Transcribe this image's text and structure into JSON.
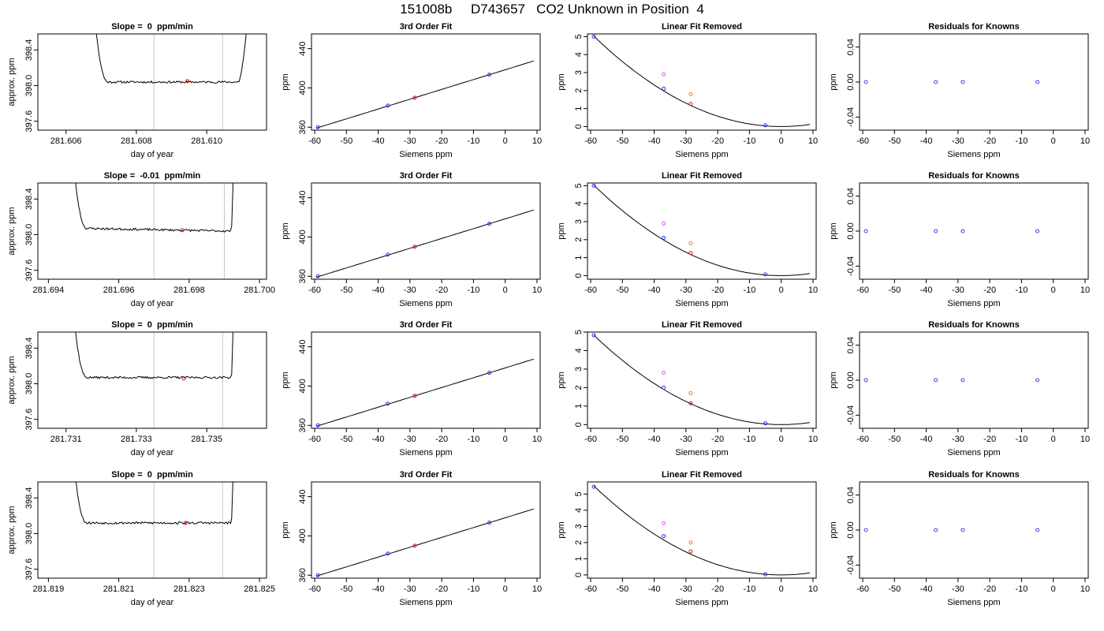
{
  "page_title": "151008b     D743657   CO2 Unknown in Position  4",
  "colors": {
    "line": "#000000",
    "vline": "#c8c8c8",
    "point_blue": "#2233ee",
    "point_red": "#dd1111",
    "point_orange": "#ee7733",
    "point_magenta": "#dd55ee",
    "point_purple": "#7722ee"
  },
  "chart_data": [
    {
      "type": "line",
      "row": 0,
      "col": 0,
      "title": "Slope =  0  ppm/min",
      "xlabel": "day of year",
      "ylabel": "approx. ppm",
      "xlim": [
        281.6052,
        281.6117
      ],
      "ylim": [
        397.5,
        398.58
      ],
      "xticks": [
        281.606,
        281.608,
        281.61
      ],
      "xtick_labels": [
        "281.606",
        "281.608",
        "281.610"
      ],
      "yticks": [
        397.6,
        398.0,
        398.4
      ],
      "ytick_labels": [
        "397.6",
        "398.0",
        "398.4"
      ],
      "trace": {
        "x_start": 281.6066,
        "x_end": 281.6114,
        "start_value": 400.0,
        "end_value": 400.0,
        "plateau_start": 281.6072,
        "plateau_end": 281.6109,
        "plateau_level": 398.04,
        "noise": 0.012,
        "seed": 11
      },
      "vlines": [
        281.6085,
        281.61045
      ],
      "marker": {
        "x": 281.60945,
        "y": 398.05
      }
    },
    {
      "type": "scatter",
      "row": 0,
      "col": 1,
      "title": "3rd Order Fit",
      "xlabel": "Siemens ppm",
      "ylabel": "ppm",
      "xlim": [
        -61,
        11
      ],
      "ylim": [
        357,
        455
      ],
      "xticks": [
        -60,
        -50,
        -40,
        -30,
        -20,
        -10,
        0,
        10
      ],
      "xtick_labels": [
        "-60",
        "-50",
        "-40",
        "-30",
        "-20",
        "-10",
        "0",
        "10"
      ],
      "yticks": [
        360,
        400,
        440
      ],
      "ytick_labels": [
        "360",
        "400",
        "440"
      ],
      "curve": {
        "type": "linear",
        "x0": -59.5,
        "x1": 9,
        "slope": 1,
        "intercept": 418.5
      },
      "points": [
        {
          "x": -59,
          "y": 360,
          "color": "point_blue"
        },
        {
          "x": -37,
          "y": 382,
          "color": "point_blue"
        },
        {
          "x": -28.5,
          "y": 390,
          "color": "point_red"
        },
        {
          "x": -5,
          "y": 413.5,
          "color": "point_blue"
        }
      ]
    },
    {
      "type": "scatter",
      "row": 0,
      "col": 2,
      "title": "Linear Fit Removed",
      "xlabel": "Siemens ppm",
      "ylabel": "ppm",
      "xlim": [
        -61,
        11
      ],
      "ylim": [
        -0.2,
        5.15
      ],
      "xticks": [
        -60,
        -50,
        -40,
        -30,
        -20,
        -10,
        0,
        10
      ],
      "xtick_labels": [
        "-60",
        "-50",
        "-40",
        "-30",
        "-20",
        "-10",
        "0",
        "10"
      ],
      "yticks": [
        0,
        1,
        2,
        3,
        4,
        5
      ],
      "ytick_labels": [
        "0",
        "1",
        "2",
        "3",
        "4",
        "5"
      ],
      "curve": {
        "type": "quadratic",
        "x0": -59,
        "x1": 9,
        "a": 0.001445,
        "vertex": 0
      },
      "points": [
        {
          "x": -59,
          "y": 5.0,
          "color": "point_blue"
        },
        {
          "x": -37,
          "y": 2.1,
          "color": "point_blue"
        },
        {
          "x": -37,
          "y": 2.9,
          "color": "point_magenta"
        },
        {
          "x": -28.5,
          "y": 1.25,
          "color": "point_red"
        },
        {
          "x": -28.5,
          "y": 1.8,
          "color": "point_orange"
        },
        {
          "x": -5,
          "y": 0.07,
          "color": "point_blue"
        }
      ]
    },
    {
      "type": "scatter",
      "row": 0,
      "col": 3,
      "title": "Residuals for Knowns",
      "xlabel": "Siemens ppm",
      "ylabel": "ppm",
      "xlim": [
        -61,
        11
      ],
      "ylim": [
        -0.055,
        0.055
      ],
      "xticks": [
        -60,
        -50,
        -40,
        -30,
        -20,
        -10,
        0,
        10
      ],
      "xtick_labels": [
        "-60",
        "-50",
        "-40",
        "-30",
        "-20",
        "-10",
        "0",
        "10"
      ],
      "yticks": [
        -0.04,
        0.0,
        0.04
      ],
      "ytick_labels": [
        "-0.04",
        "0.00",
        "0.04"
      ],
      "points": [
        {
          "x": -59,
          "y": 0,
          "color": "point_purple"
        },
        {
          "x": -37,
          "y": 0,
          "color": "point_purple"
        },
        {
          "x": -28.5,
          "y": 0,
          "color": "point_purple"
        },
        {
          "x": -5,
          "y": 0,
          "color": "point_purple"
        }
      ]
    },
    {
      "type": "line",
      "row": 1,
      "col": 0,
      "title": "Slope =  -0.01  ppm/min",
      "xlabel": "day of year",
      "ylabel": "approx. ppm",
      "xlim": [
        281.6937,
        281.7002
      ],
      "ylim": [
        397.5,
        398.58
      ],
      "xticks": [
        281.694,
        281.696,
        281.698,
        281.7
      ],
      "xtick_labels": [
        "281.694",
        "281.696",
        "281.698",
        "281.700"
      ],
      "yticks": [
        397.6,
        398.0,
        398.4
      ],
      "ytick_labels": [
        "397.6",
        "398.0",
        "398.4"
      ],
      "trace": {
        "x_start": 281.6945,
        "x_end": 281.6993,
        "start_value": 400.0,
        "end_value": 400.0,
        "plateau_start": 281.6951,
        "plateau_end": 281.6992,
        "plateau_level": 398.07,
        "plateau_end_level": 398.04,
        "noise": 0.012,
        "seed": 23
      },
      "vlines": [
        281.697,
        281.699
      ],
      "marker": {
        "x": 281.6978,
        "y": 398.05
      }
    },
    {
      "type": "scatter",
      "row": 1,
      "col": 1,
      "title": "3rd Order Fit",
      "xlabel": "Siemens ppm",
      "ylabel": "ppm",
      "xlim": [
        -61,
        11
      ],
      "ylim": [
        357,
        455
      ],
      "xticks": [
        -60,
        -50,
        -40,
        -30,
        -20,
        -10,
        0,
        10
      ],
      "xtick_labels": [
        "-60",
        "-50",
        "-40",
        "-30",
        "-20",
        "-10",
        "0",
        "10"
      ],
      "yticks": [
        360,
        400,
        440
      ],
      "ytick_labels": [
        "360",
        "400",
        "440"
      ],
      "curve": {
        "type": "linear",
        "x0": -59.5,
        "x1": 9,
        "slope": 1,
        "intercept": 418.5
      },
      "points": [
        {
          "x": -59,
          "y": 360,
          "color": "point_blue"
        },
        {
          "x": -37,
          "y": 382,
          "color": "point_blue"
        },
        {
          "x": -28.5,
          "y": 390,
          "color": "point_red"
        },
        {
          "x": -5,
          "y": 413.5,
          "color": "point_blue"
        }
      ]
    },
    {
      "type": "scatter",
      "row": 1,
      "col": 2,
      "title": "Linear Fit Removed",
      "xlabel": "Siemens ppm",
      "ylabel": "ppm",
      "xlim": [
        -61,
        11
      ],
      "ylim": [
        -0.2,
        5.15
      ],
      "xticks": [
        -60,
        -50,
        -40,
        -30,
        -20,
        -10,
        0,
        10
      ],
      "xtick_labels": [
        "-60",
        "-50",
        "-40",
        "-30",
        "-20",
        "-10",
        "0",
        "10"
      ],
      "yticks": [
        0,
        1,
        2,
        3,
        4,
        5
      ],
      "ytick_labels": [
        "0",
        "1",
        "2",
        "3",
        "4",
        "5"
      ],
      "curve": {
        "type": "quadratic",
        "x0": -59,
        "x1": 9,
        "a": 0.001445,
        "vertex": 0
      },
      "points": [
        {
          "x": -59,
          "y": 5.0,
          "color": "point_blue"
        },
        {
          "x": -37,
          "y": 2.1,
          "color": "point_blue"
        },
        {
          "x": -37,
          "y": 2.9,
          "color": "point_magenta"
        },
        {
          "x": -28.5,
          "y": 1.25,
          "color": "point_red"
        },
        {
          "x": -28.5,
          "y": 1.8,
          "color": "point_orange"
        },
        {
          "x": -5,
          "y": 0.07,
          "color": "point_blue"
        }
      ]
    },
    {
      "type": "scatter",
      "row": 1,
      "col": 3,
      "title": "Residuals for Knowns",
      "xlabel": "Siemens ppm",
      "ylabel": "ppm",
      "xlim": [
        -61,
        11
      ],
      "ylim": [
        -0.055,
        0.055
      ],
      "xticks": [
        -60,
        -50,
        -40,
        -30,
        -20,
        -10,
        0,
        10
      ],
      "xtick_labels": [
        "-60",
        "-50",
        "-40",
        "-30",
        "-20",
        "-10",
        "0",
        "10"
      ],
      "yticks": [
        -0.04,
        0.0,
        0.04
      ],
      "ytick_labels": [
        "-0.04",
        "0.00",
        "0.04"
      ],
      "points": [
        {
          "x": -59,
          "y": 0,
          "color": "point_purple"
        },
        {
          "x": -37,
          "y": 0,
          "color": "point_purple"
        },
        {
          "x": -28.5,
          "y": 0,
          "color": "point_purple"
        },
        {
          "x": -5,
          "y": 0,
          "color": "point_purple"
        }
      ]
    },
    {
      "type": "line",
      "row": 2,
      "col": 0,
      "title": "Slope =  0  ppm/min",
      "xlabel": "day of year",
      "ylabel": "approx. ppm",
      "xlim": [
        281.7302,
        281.7367
      ],
      "ylim": [
        397.5,
        398.58
      ],
      "xticks": [
        281.731,
        281.733,
        281.735
      ],
      "xtick_labels": [
        "281.731",
        "281.733",
        "281.735"
      ],
      "yticks": [
        397.6,
        398.0,
        398.4
      ],
      "ytick_labels": [
        "397.6",
        "398.0",
        "398.4"
      ],
      "trace": {
        "x_start": 281.731,
        "x_end": 281.7358,
        "start_value": 400.0,
        "end_value": 400.0,
        "plateau_start": 281.7316,
        "plateau_end": 281.7357,
        "plateau_level": 398.07,
        "noise": 0.012,
        "seed": 37
      },
      "vlines": [
        281.7335,
        281.73545
      ],
      "marker": {
        "x": 281.73435,
        "y": 398.06
      }
    },
    {
      "type": "scatter",
      "row": 2,
      "col": 1,
      "title": "3rd Order Fit",
      "xlabel": "Siemens ppm",
      "ylabel": "ppm",
      "xlim": [
        -61,
        11
      ],
      "ylim": [
        357,
        455
      ],
      "xticks": [
        -60,
        -50,
        -40,
        -30,
        -20,
        -10,
        0,
        10
      ],
      "xtick_labels": [
        "-60",
        "-50",
        "-40",
        "-30",
        "-20",
        "-10",
        "0",
        "10"
      ],
      "yticks": [
        360,
        400,
        440
      ],
      "ytick_labels": [
        "360",
        "400",
        "440"
      ],
      "curve": {
        "type": "linear",
        "x0": -59.5,
        "x1": 9,
        "slope": 1,
        "intercept": 418.5
      },
      "points": [
        {
          "x": -59,
          "y": 360,
          "color": "point_blue"
        },
        {
          "x": -37,
          "y": 382,
          "color": "point_blue"
        },
        {
          "x": -28.5,
          "y": 390,
          "color": "point_red"
        },
        {
          "x": -5,
          "y": 413.5,
          "color": "point_blue"
        }
      ]
    },
    {
      "type": "scatter",
      "row": 2,
      "col": 2,
      "title": "Linear Fit Removed",
      "xlabel": "Siemens ppm",
      "ylabel": "ppm",
      "xlim": [
        -61,
        11
      ],
      "ylim": [
        -0.2,
        5.0
      ],
      "xticks": [
        -60,
        -50,
        -40,
        -30,
        -20,
        -10,
        0,
        10
      ],
      "xtick_labels": [
        "-60",
        "-50",
        "-40",
        "-30",
        "-20",
        "-10",
        "0",
        "10"
      ],
      "yticks": [
        0,
        1,
        2,
        3,
        4,
        5
      ],
      "ytick_labels": [
        "0",
        "1",
        "2",
        "3",
        "4",
        "5"
      ],
      "curve": {
        "type": "quadratic",
        "x0": -59,
        "x1": 9,
        "a": 0.001388,
        "vertex": 0
      },
      "points": [
        {
          "x": -59,
          "y": 4.83,
          "color": "point_blue"
        },
        {
          "x": -37,
          "y": 2.0,
          "color": "point_blue"
        },
        {
          "x": -37,
          "y": 2.8,
          "color": "point_magenta"
        },
        {
          "x": -28.5,
          "y": 1.15,
          "color": "point_red"
        },
        {
          "x": -28.5,
          "y": 1.7,
          "color": "point_orange"
        },
        {
          "x": -5,
          "y": 0.07,
          "color": "point_blue"
        }
      ]
    },
    {
      "type": "scatter",
      "row": 2,
      "col": 3,
      "title": "Residuals for Knowns",
      "xlabel": "Siemens ppm",
      "ylabel": "ppm",
      "xlim": [
        -61,
        11
      ],
      "ylim": [
        -0.055,
        0.055
      ],
      "xticks": [
        -60,
        -50,
        -40,
        -30,
        -20,
        -10,
        0,
        10
      ],
      "xtick_labels": [
        "-60",
        "-50",
        "-40",
        "-30",
        "-20",
        "-10",
        "0",
        "10"
      ],
      "yticks": [
        -0.04,
        0.0,
        0.04
      ],
      "ytick_labels": [
        "-0.04",
        "0.00",
        "0.04"
      ],
      "points": [
        {
          "x": -59,
          "y": 0,
          "color": "point_purple"
        },
        {
          "x": -37,
          "y": 0,
          "color": "point_purple"
        },
        {
          "x": -28.5,
          "y": 0,
          "color": "point_purple"
        },
        {
          "x": -5,
          "y": 0,
          "color": "point_purple"
        }
      ]
    },
    {
      "type": "line",
      "row": 3,
      "col": 0,
      "title": "Slope =  0  ppm/min",
      "xlabel": "day of year",
      "ylabel": "approx. ppm",
      "xlim": [
        281.8187,
        281.8252
      ],
      "ylim": [
        397.5,
        398.58
      ],
      "xticks": [
        281.819,
        281.821,
        281.823,
        281.825
      ],
      "xtick_labels": [
        "281.819",
        "281.821",
        "281.823",
        "281.825"
      ],
      "yticks": [
        397.6,
        398.0,
        398.4
      ],
      "ytick_labels": [
        "397.6",
        "398.0",
        "398.4"
      ],
      "trace": {
        "x_start": 281.8195,
        "x_end": 281.8243,
        "start_value": 400.0,
        "end_value": 400.0,
        "plateau_start": 281.8201,
        "plateau_end": 281.8242,
        "plateau_level": 398.12,
        "noise": 0.013,
        "seed": 53
      },
      "vlines": [
        281.822,
        281.82395
      ],
      "marker": {
        "x": 281.8229,
        "y": 398.12
      }
    },
    {
      "type": "scatter",
      "row": 3,
      "col": 1,
      "title": "3rd Order Fit",
      "xlabel": "Siemens ppm",
      "ylabel": "ppm",
      "xlim": [
        -61,
        11
      ],
      "ylim": [
        357,
        455
      ],
      "xticks": [
        -60,
        -50,
        -40,
        -30,
        -20,
        -10,
        0,
        10
      ],
      "xtick_labels": [
        "-60",
        "-50",
        "-40",
        "-30",
        "-20",
        "-10",
        "0",
        "10"
      ],
      "yticks": [
        360,
        400,
        440
      ],
      "ytick_labels": [
        "360",
        "400",
        "440"
      ],
      "curve": {
        "type": "linear",
        "x0": -59.5,
        "x1": 9,
        "slope": 1,
        "intercept": 418.5
      },
      "points": [
        {
          "x": -59,
          "y": 360,
          "color": "point_blue"
        },
        {
          "x": -37,
          "y": 382,
          "color": "point_blue"
        },
        {
          "x": -28.5,
          "y": 390,
          "color": "point_red"
        },
        {
          "x": -5,
          "y": 413.5,
          "color": "point_blue"
        }
      ]
    },
    {
      "type": "scatter",
      "row": 3,
      "col": 2,
      "title": "Linear Fit Removed",
      "xlabel": "Siemens ppm",
      "ylabel": "ppm",
      "xlim": [
        -61,
        11
      ],
      "ylim": [
        -0.2,
        5.75
      ],
      "xticks": [
        -60,
        -50,
        -40,
        -30,
        -20,
        -10,
        0,
        10
      ],
      "xtick_labels": [
        "-60",
        "-50",
        "-40",
        "-30",
        "-20",
        "-10",
        "0",
        "10"
      ],
      "yticks": [
        0,
        1,
        2,
        3,
        4,
        5
      ],
      "ytick_labels": [
        "0",
        "1",
        "2",
        "3",
        "4",
        "5"
      ],
      "curve": {
        "type": "quadratic",
        "x0": -59,
        "x1": 9,
        "a": 0.00158,
        "vertex": 0
      },
      "points": [
        {
          "x": -59,
          "y": 5.45,
          "color": "point_blue"
        },
        {
          "x": -37,
          "y": 2.4,
          "color": "point_blue"
        },
        {
          "x": -37,
          "y": 3.2,
          "color": "point_magenta"
        },
        {
          "x": -28.5,
          "y": 1.45,
          "color": "point_red"
        },
        {
          "x": -28.5,
          "y": 2.0,
          "color": "point_orange"
        },
        {
          "x": -5,
          "y": 0.04,
          "color": "point_blue"
        }
      ]
    },
    {
      "type": "scatter",
      "row": 3,
      "col": 3,
      "title": "Residuals for Knowns",
      "xlabel": "Siemens ppm",
      "ylabel": "ppm",
      "xlim": [
        -61,
        11
      ],
      "ylim": [
        -0.055,
        0.055
      ],
      "xticks": [
        -60,
        -50,
        -40,
        -30,
        -20,
        -10,
        0,
        10
      ],
      "xtick_labels": [
        "-60",
        "-50",
        "-40",
        "-30",
        "-20",
        "-10",
        "0",
        "10"
      ],
      "yticks": [
        -0.04,
        0.0,
        0.04
      ],
      "ytick_labels": [
        "-0.04",
        "0.00",
        "0.04"
      ],
      "points": [
        {
          "x": -59,
          "y": 0,
          "color": "point_purple"
        },
        {
          "x": -37,
          "y": 0,
          "color": "point_purple"
        },
        {
          "x": -28.5,
          "y": 0,
          "color": "point_purple"
        },
        {
          "x": -5,
          "y": 0,
          "color": "point_purple"
        }
      ]
    }
  ]
}
